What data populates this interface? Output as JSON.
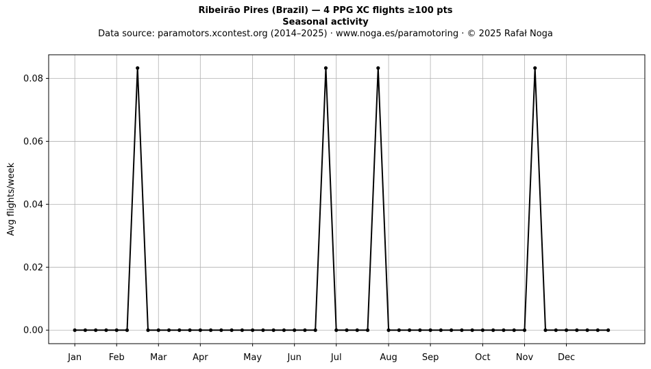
{
  "title": "Ribeirão Pires (Brazil)  —  4 PPG XC flights ≥100 pts",
  "subtitle": "Seasonal activity",
  "source_line": "Data source: paramotors.xcontest.org (2014–2025)  ·  www.noga.es/paramotoring  ·  © 2025 Rafał Noga",
  "chart_data": {
    "type": "line",
    "title": "Ribeirão Pires (Brazil)  —  4 PPG XC flights ≥100 pts",
    "subtitle": "Seasonal activity",
    "xlabel": "",
    "ylabel": "Avg flights/week",
    "x_unit": "week of year",
    "xlim": [
      -2.5,
      54.5
    ],
    "ylim": [
      -0.0043,
      0.0875
    ],
    "x_ticks": [
      {
        "label": "Jan",
        "x": 0
      },
      {
        "label": "Feb",
        "x": 4
      },
      {
        "label": "Mar",
        "x": 8
      },
      {
        "label": "Apr",
        "x": 12
      },
      {
        "label": "May",
        "x": 17
      },
      {
        "label": "Jun",
        "x": 21
      },
      {
        "label": "Jul",
        "x": 25
      },
      {
        "label": "Aug",
        "x": 30
      },
      {
        "label": "Sep",
        "x": 34
      },
      {
        "label": "Oct",
        "x": 39
      },
      {
        "label": "Nov",
        "x": 43
      },
      {
        "label": "Dec",
        "x": 47
      }
    ],
    "y_ticks": [
      0.0,
      0.02,
      0.04,
      0.06,
      0.08
    ],
    "y_tick_labels": [
      "0.00",
      "0.02",
      "0.04",
      "0.06",
      "0.08"
    ],
    "grid": true,
    "series_color": "#000000",
    "grid_color": "#b0b0b0",
    "series": [
      {
        "x": [
          0,
          1,
          2,
          3,
          4,
          5,
          6,
          7,
          8,
          9,
          10,
          11,
          12,
          13,
          14,
          15,
          16,
          17,
          18,
          19,
          20,
          21,
          22,
          23,
          24,
          25,
          26,
          27,
          28,
          29,
          30,
          31,
          32,
          33,
          34,
          35,
          36,
          37,
          38,
          39,
          40,
          41,
          42,
          43,
          44,
          45,
          46,
          47,
          48,
          49,
          50,
          51
        ],
        "values": [
          0,
          0,
          0,
          0,
          0,
          0,
          0.0833,
          0,
          0,
          0,
          0,
          0,
          0,
          0,
          0,
          0,
          0,
          0,
          0,
          0,
          0,
          0,
          0,
          0,
          0.0833,
          0,
          0,
          0,
          0,
          0.0833,
          0,
          0,
          0,
          0,
          0,
          0,
          0,
          0,
          0,
          0,
          0,
          0,
          0,
          0,
          0.0833,
          0,
          0,
          0,
          0,
          0,
          0,
          0
        ]
      }
    ]
  }
}
